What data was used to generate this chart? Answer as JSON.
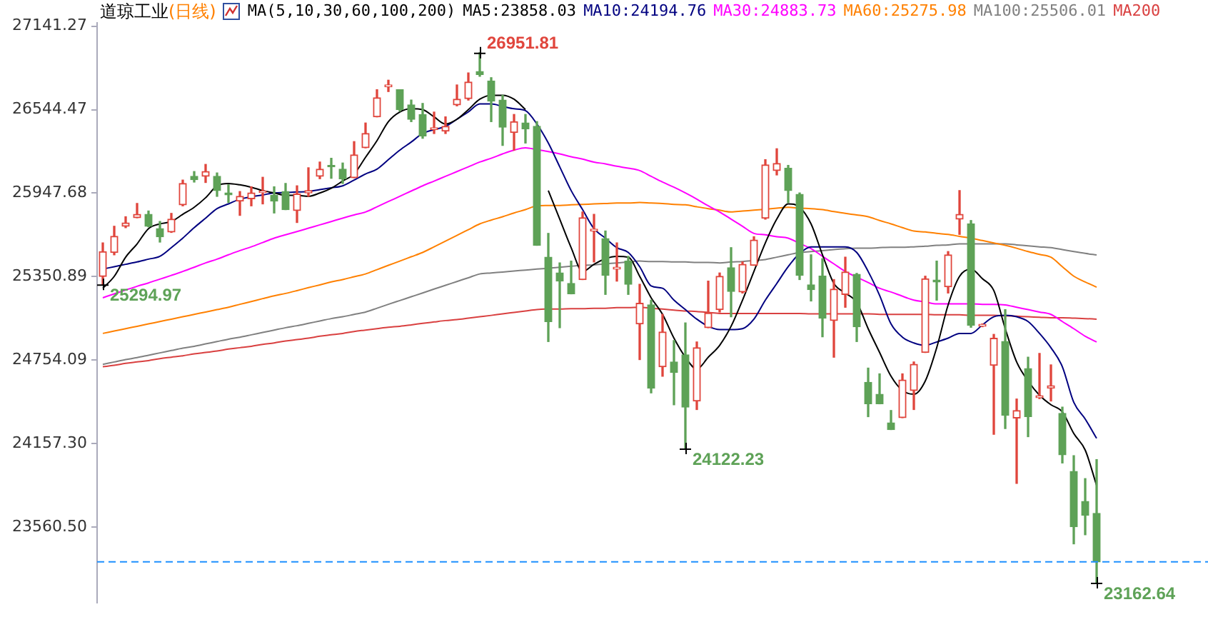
{
  "chart_data": {
    "type": "candlestick",
    "title": "道琼工业",
    "subtitle": "(日线)",
    "legend_title": "MA(5,10,30,60,100,200)",
    "legend": "top",
    "marker": "none",
    "grid": false,
    "tick_labels": "y",
    "categories": [
      null,
      null,
      null,
      null,
      null,
      null,
      null,
      null,
      null,
      null,
      null,
      null,
      null,
      null,
      null,
      null,
      null,
      null,
      null,
      null,
      null,
      null,
      null,
      null,
      null,
      null,
      null,
      null,
      null,
      null,
      null,
      null,
      null,
      null,
      null,
      null,
      null,
      null,
      null,
      null,
      null,
      null,
      null,
      null,
      null,
      null,
      null,
      null,
      null,
      null,
      null,
      null,
      null,
      null,
      null,
      null,
      null,
      null,
      null,
      null,
      null,
      null,
      null,
      null,
      null,
      null,
      null,
      null,
      null,
      null,
      null,
      null,
      null,
      null,
      null,
      null,
      null,
      null,
      null,
      null,
      null,
      null,
      null,
      null,
      null,
      null,
      null,
      null
    ],
    "ohlc": [
      [
        25353,
        25592,
        25294.97,
        25530
      ],
      [
        25524,
        25711,
        25507,
        25639
      ],
      [
        25711,
        25779,
        25701,
        25735
      ],
      [
        25772,
        25874,
        25772,
        25796
      ],
      [
        25796,
        25820,
        25707,
        25711
      ],
      [
        25694,
        25745,
        25598,
        25636
      ],
      [
        25670,
        25803,
        25667,
        25762
      ],
      [
        25864,
        26041,
        25857,
        26017
      ],
      [
        26068,
        26102,
        26027,
        26044
      ],
      [
        26068,
        26153,
        26024,
        26102
      ],
      [
        26068,
        26092,
        25925,
        25966
      ],
      [
        25949,
        26007,
        25881,
        25935
      ],
      [
        25891,
        25959,
        25789,
        25925
      ],
      [
        25908,
        25993,
        25857,
        25949
      ],
      [
        25952,
        26061,
        25871,
        25963
      ],
      [
        25932,
        25993,
        25806,
        25891
      ],
      [
        25959,
        26017,
        25830,
        25830
      ],
      [
        25823,
        26000,
        25738,
        25942
      ],
      [
        25949,
        26129,
        25925,
        25966
      ],
      [
        26068,
        26170,
        26051,
        26119
      ],
      [
        26146,
        26197,
        26054,
        26136
      ],
      [
        26119,
        26163,
        26017,
        26051
      ],
      [
        26058,
        26316,
        26058,
        26221
      ],
      [
        26272,
        26449,
        26272,
        26374
      ],
      [
        26493,
        26687,
        26493,
        26630
      ],
      [
        26708,
        26755,
        26674,
        26721
      ],
      [
        26687,
        26687,
        26534,
        26545
      ],
      [
        26579,
        26613,
        26459,
        26476
      ],
      [
        26510,
        26589,
        26340,
        26357
      ],
      [
        26402,
        26527,
        26374,
        26415
      ],
      [
        26391,
        26493,
        26374,
        26425
      ],
      [
        26579,
        26721,
        26572,
        26619
      ],
      [
        26623,
        26807,
        26613,
        26742
      ],
      [
        26817,
        26951.81,
        26783,
        26796
      ],
      [
        26749,
        26773,
        26459,
        26606
      ],
      [
        26613,
        26647,
        26289,
        26419
      ],
      [
        26381,
        26510,
        26255,
        26459
      ],
      [
        26449,
        26510,
        26306,
        26408
      ],
      [
        26425,
        26459,
        25575,
        25575
      ],
      [
        25490,
        25660,
        24887,
        25030
      ],
      [
        25377,
        25449,
        24986,
        25319
      ],
      [
        25302,
        25462,
        25228,
        25228
      ],
      [
        25330,
        25813,
        25330,
        25772
      ],
      [
        25677,
        25796,
        25456,
        25690
      ],
      [
        25622,
        25677,
        25224,
        25360
      ],
      [
        25405,
        25592,
        25319,
        25418
      ],
      [
        25462,
        25496,
        25224,
        25296
      ],
      [
        25013,
        25296,
        24758,
        25160
      ],
      [
        25149,
        25183,
        24520,
        24554
      ],
      [
        24707,
        25081,
        24639,
        24955
      ],
      [
        24741,
        24894,
        24435,
        24666
      ],
      [
        24792,
        25020,
        24122.23,
        24418
      ],
      [
        24462,
        24884,
        24401,
        24843
      ],
      [
        24986,
        25319,
        24986,
        25091
      ],
      [
        25115,
        25377,
        25098,
        25353
      ],
      [
        25415,
        25558,
        25064,
        25245
      ],
      [
        25241,
        25456,
        25234,
        25439
      ],
      [
        25432,
        25636,
        25432,
        25612
      ],
      [
        25769,
        26187,
        25762,
        26150
      ],
      [
        26109,
        26265,
        26078,
        26160
      ],
      [
        26126,
        26146,
        25881,
        25966
      ],
      [
        25939,
        25949,
        25330,
        25360
      ],
      [
        25292,
        25507,
        25177,
        25258
      ],
      [
        25354,
        25479,
        24921,
        25054
      ],
      [
        25037,
        25330,
        24775,
        25262
      ],
      [
        25224,
        25490,
        25132,
        25384
      ],
      [
        25367,
        25374,
        24887,
        24993
      ],
      [
        24595,
        24697,
        24350,
        24442
      ],
      [
        24510,
        24656,
        24442,
        24442
      ],
      [
        24305,
        24394,
        24258,
        24258
      ],
      [
        24343,
        24656,
        24343,
        24612
      ],
      [
        24537,
        24741,
        24401,
        24724
      ],
      [
        24809,
        25354,
        24809,
        25336
      ],
      [
        25326,
        25462,
        25183,
        25313
      ],
      [
        25279,
        25530,
        25234,
        25507
      ],
      [
        25762,
        25966,
        25653,
        25796
      ],
      [
        25728,
        25752,
        24989,
        25003
      ],
      [
        24996,
        25013,
        24993,
        25010
      ],
      [
        24717,
        24938,
        24224,
        24911
      ],
      [
        24887,
        25115,
        24265,
        24360
      ],
      [
        24340,
        24476,
        23873,
        24394
      ],
      [
        24693,
        24775,
        24207,
        24350
      ],
      [
        24486,
        24802,
        24479,
        24499
      ],
      [
        24554,
        24720,
        24462,
        24571
      ],
      [
        24373,
        24418,
        24019,
        24077
      ],
      [
        23958,
        24071,
        23441,
        23563
      ],
      [
        23744,
        23907,
        23506,
        23645
      ],
      [
        23659,
        24043,
        23162.64,
        23312
      ]
    ],
    "colors": [
      "#e0453c",
      "#e0453c",
      "#e0453c",
      "#e0453c",
      "#5ea257",
      "#5ea257",
      "#e0453c",
      "#e0453c",
      "#5ea257",
      "#e0453c",
      "#5ea257",
      "#5ea257",
      "#e0453c",
      "#e0453c",
      "#e0453c",
      "#5ea257",
      "#5ea257",
      "#e0453c",
      "#e0453c",
      "#e0453c",
      "#5ea257",
      "#5ea257",
      "#e0453c",
      "#e0453c",
      "#e0453c",
      "#e0453c",
      "#5ea257",
      "#5ea257",
      "#5ea257",
      "#e0453c",
      "#e0453c",
      "#e0453c",
      "#e0453c",
      "#5ea257",
      "#5ea257",
      "#5ea257",
      "#e0453c",
      "#5ea257",
      "#5ea257",
      "#5ea257",
      "#5ea257",
      "#5ea257",
      "#e0453c",
      "#e0453c",
      "#5ea257",
      "#e0453c",
      "#5ea257",
      "#e0453c",
      "#5ea257",
      "#e0453c",
      "#5ea257",
      "#5ea257",
      "#e0453c",
      "#e0453c",
      "#e0453c",
      "#5ea257",
      "#e0453c",
      "#e0453c",
      "#e0453c",
      "#e0453c",
      "#5ea257",
      "#5ea257",
      "#5ea257",
      "#5ea257",
      "#e0453c",
      "#e0453c",
      "#5ea257",
      "#5ea257",
      "#5ea257",
      "#5ea257",
      "#e0453c",
      "#e0453c",
      "#e0453c",
      "#5ea257",
      "#e0453c",
      "#e0453c",
      "#5ea257",
      "#e0453c",
      "#e0453c",
      "#5ea257",
      "#e0453c",
      "#5ea257",
      "#e0453c",
      "#e0453c",
      "#5ea257",
      "#5ea257",
      "#5ea257",
      "#5ea257"
    ],
    "series": [
      {
        "name": "MA5:23858.03",
        "type": "line",
        "color": "#000000",
        "values": [
          25268,
          25353,
          25490,
          25585,
          25694,
          25728,
          25745,
          25796,
          25847,
          25915,
          26000,
          26017,
          26007,
          25990,
          25966,
          25949,
          25932,
          25932,
          25925,
          25949,
          25983,
          26034,
          26085,
          26204,
          26323,
          26459,
          26528,
          26551,
          26545,
          26493,
          26442,
          26476,
          26545,
          26619,
          26647,
          26647,
          26619,
          26545,
          null,
          25966,
          25762,
          25558,
          25388,
          25439,
          25479,
          25496,
          25490,
          25353,
          25200,
          25081,
          24911,
          24775,
          24690,
          24775,
          24860,
          24996,
          25183,
          25388,
          25592,
          25762,
          25871,
          25847,
          25728,
          25507,
          25302,
          25234,
          25166,
          24979,
          24809,
          24639,
          24537,
          24510,
          24605,
          24843,
          25149,
          25353,
          25405,
          25336,
          25251,
          24979,
          24741,
          24605,
          24503,
          24435,
          24384,
          24230,
          24111,
          23858.03
        ]
      },
      {
        "name": "MA10:24194.76",
        "type": "line",
        "color": "#000080",
        "values": [
          25405,
          25422,
          25439,
          25456,
          25476,
          25496,
          25558,
          25626,
          25701,
          25769,
          25837,
          25871,
          25905,
          25922,
          25935,
          25949,
          25952,
          25956,
          25959,
          25973,
          25986,
          26000,
          26041,
          26085,
          26119,
          26187,
          26255,
          26313,
          26374,
          26402,
          26425,
          26476,
          26528,
          26585,
          26585,
          26568,
          26551,
          26538,
          26442,
          26306,
          26136,
          25966,
          25830,
          25694,
          25626,
          25558,
          25524,
          25422,
          25285,
          25268,
          25183,
          25115,
          25047,
          24996,
          24972,
          24972,
          24979,
          25047,
          25183,
          25302,
          25422,
          25517,
          25564,
          25564,
          25564,
          25564,
          25524,
          25388,
          25217,
          25013,
          24918,
          24877,
          24860,
          24884,
          24911,
          24945,
          24945,
          25006,
          25064,
          25074,
          25064,
          25030,
          24945,
          24843,
          24707,
          24452,
          24333,
          24194.76
        ]
      },
      {
        "name": "MA30:24883.73",
        "type": "line",
        "color": "#ff00ff",
        "values": [
          25200,
          25228,
          25255,
          25282,
          25306,
          25333,
          25360,
          25388,
          25418,
          25449,
          25476,
          25507,
          25537,
          25564,
          25595,
          25626,
          25650,
          25673,
          25697,
          25721,
          25745,
          25769,
          25792,
          25813,
          25850,
          25888,
          25925,
          25963,
          26000,
          26034,
          26068,
          26102,
          26136,
          26170,
          26197,
          26228,
          26255,
          26272,
          26259,
          26245,
          26228,
          26208,
          26191,
          26170,
          26157,
          26140,
          26126,
          26109,
          26068,
          26027,
          25990,
          25949,
          25905,
          25857,
          25813,
          25762,
          25711,
          25660,
          25650,
          25636,
          25626,
          25588,
          25551,
          25496,
          25442,
          25388,
          25347,
          25309,
          25268,
          25241,
          25211,
          25183,
          25170,
          25156,
          25156,
          25156,
          25156,
          25153,
          25153,
          25149,
          25132,
          25115,
          25098,
          25081,
          25030,
          24979,
          24925,
          24883.73
        ]
      },
      {
        "name": "MA60:25275.98",
        "type": "line",
        "color": "#ff8000",
        "values": [
          24945,
          24962,
          24979,
          24996,
          25013,
          25030,
          25047,
          25064,
          25081,
          25098,
          25115,
          25132,
          25153,
          25173,
          25194,
          25214,
          25231,
          25251,
          25272,
          25292,
          25313,
          25330,
          25350,
          25370,
          25401,
          25432,
          25462,
          25493,
          25524,
          25564,
          25605,
          25646,
          25687,
          25728,
          25755,
          25779,
          25806,
          25830,
          25857,
          25860,
          25860,
          25864,
          25867,
          25871,
          25874,
          25877,
          25877,
          25881,
          25877,
          25874,
          25867,
          25864,
          25850,
          25837,
          25826,
          25813,
          25820,
          25826,
          25833,
          25840,
          25847,
          25840,
          25837,
          25830,
          25816,
          25803,
          25792,
          25779,
          25752,
          25728,
          25701,
          25677,
          25670,
          25660,
          25653,
          25639,
          25626,
          25609,
          25592,
          25575,
          25554,
          25530,
          25510,
          25490,
          25422,
          25354,
          25313,
          25275.98
        ]
      },
      {
        "name": "MA100:25506.01",
        "type": "line",
        "color": "#808080",
        "values": [
          24724,
          24741,
          24758,
          24772,
          24789,
          24806,
          24823,
          24840,
          24853,
          24870,
          24887,
          24904,
          24918,
          24935,
          24952,
          24969,
          24986,
          25000,
          25017,
          25034,
          25051,
          25064,
          25081,
          25098,
          25125,
          25153,
          25180,
          25207,
          25234,
          25262,
          25289,
          25316,
          25343,
          25370,
          25377,
          25384,
          25391,
          25398,
          25405,
          25411,
          25418,
          25425,
          25432,
          25435,
          25442,
          25449,
          25456,
          25462,
          25459,
          25459,
          25456,
          25456,
          25452,
          25452,
          25449,
          25456,
          25459,
          25466,
          25473,
          25490,
          25507,
          25524,
          25530,
          25537,
          25544,
          25551,
          25554,
          25554,
          25558,
          25561,
          25561,
          25564,
          25568,
          25575,
          25578,
          25585,
          25585,
          25585,
          25585,
          25585,
          25578,
          25571,
          25564,
          25558,
          25544,
          25530,
          25517,
          25506.01
        ]
      },
      {
        "name": "MA200",
        "type": "line",
        "color": "#d94040",
        "values": [
          24707,
          24717,
          24731,
          24741,
          24751,
          24765,
          24775,
          24785,
          24799,
          24809,
          24819,
          24833,
          24843,
          24853,
          24867,
          24877,
          24891,
          24901,
          24911,
          24925,
          24935,
          24945,
          24959,
          24969,
          24979,
          24989,
          24996,
          25006,
          25017,
          25027,
          25037,
          25044,
          25054,
          25064,
          25074,
          25085,
          25095,
          25105,
          25115,
          25119,
          25119,
          25122,
          25122,
          25125,
          25125,
          25129,
          25129,
          25132,
          25125,
          25119,
          25112,
          25105,
          25102,
          25095,
          25088,
          25088,
          25088,
          25088,
          25088,
          25088,
          25088,
          25088,
          25085,
          25085,
          25085,
          25085,
          25085,
          25085,
          25081,
          25081,
          25081,
          25081,
          25081,
          25078,
          25078,
          25078,
          25074,
          25074,
          25074,
          25071,
          25068,
          25064,
          25061,
          25057,
          25057,
          25054,
          25051,
          25047
        ]
      }
    ],
    "ylim": [
      23020,
      27165
    ],
    "yticks": [
      27141.27,
      26544.47,
      25947.68,
      25350.89,
      24754.09,
      {
        "value": 24157.3,
        "label": "24157.30"
      },
      {
        "value": 23560.5,
        "label": "23560.50"
      }
    ],
    "annotations": [
      "26951.81",
      "25294.97",
      "24122.23",
      "23162.64"
    ],
    "ref_lines": [
      {
        "axis": "y",
        "value": 23312,
        "color": "#1e90ff",
        "line_style": "dashed"
      }
    ]
  }
}
